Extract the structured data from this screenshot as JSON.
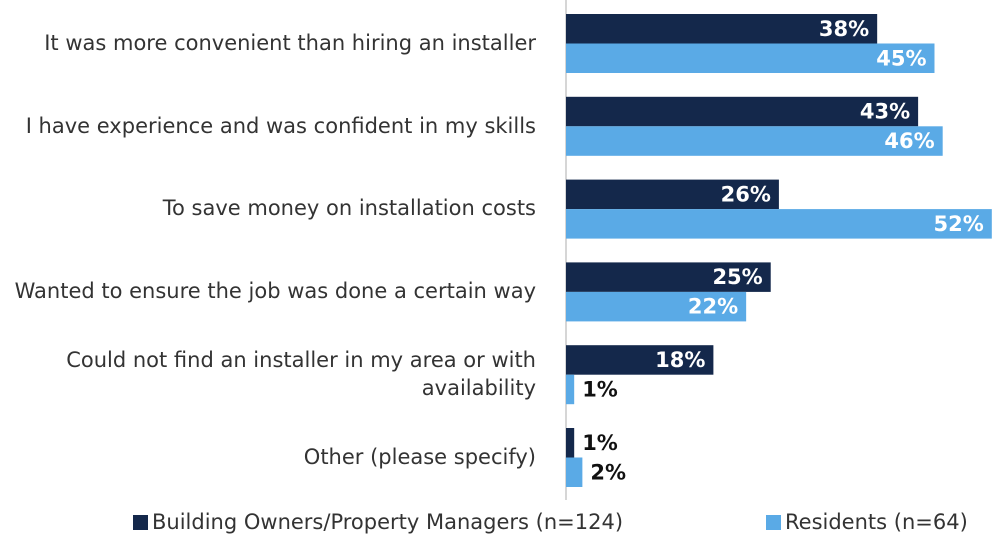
{
  "chart_data": {
    "type": "hbar",
    "categories": [
      "It was more convenient than hiring an installer",
      "I have experience and was confident in my skills",
      "To save money on installation costs",
      "Wanted to ensure the job was done a certain way",
      "Could not find an installer in my area or with availability",
      "Other (please specify)"
    ],
    "series": [
      {
        "name": "Building Owners/Property Managers (n=124)",
        "color": "#14284b",
        "values": [
          38,
          43,
          26,
          25,
          18,
          1
        ],
        "value_labels": [
          "38%",
          "43%",
          "26%",
          "25%",
          "18%",
          "1%"
        ]
      },
      {
        "name": "Residents (n=64)",
        "color": "#5aaae6",
        "values": [
          45,
          46,
          52,
          22,
          1,
          2
        ],
        "value_labels": [
          "45%",
          "46%",
          "52%",
          "22%",
          "1%",
          "2%"
        ]
      }
    ],
    "xlim": [
      0,
      53
    ]
  }
}
